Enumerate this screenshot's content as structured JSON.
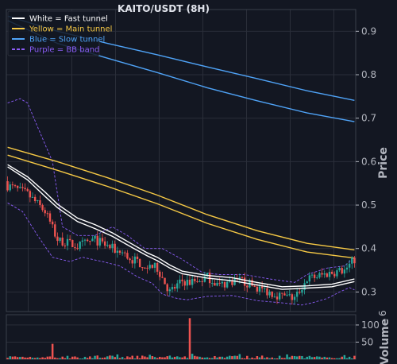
{
  "chart_data": {
    "type": "candlestick",
    "title": "KAITO/USDT (8H)",
    "ylabel": "Price",
    "volume_label": "Volume",
    "volume_exponent": "6",
    "ylim": [
      0.255,
      0.95
    ],
    "vol_ylim": [
      0,
      130
    ],
    "y_ticks": [
      "0.3",
      "0.4",
      "0.5",
      "0.6",
      "0.7",
      "0.8",
      "0.9"
    ],
    "vol_ticks": [
      "50",
      "100"
    ],
    "grid": true,
    "legend_position": "top-left",
    "legend": [
      {
        "label": "White = Fast tunnel",
        "color": "#ffffff",
        "dash": false
      },
      {
        "label": "Yellow = Main tunnel",
        "color": "#f6c945",
        "dash": false
      },
      {
        "label": "Blue = Slow tunnel",
        "color": "#4fa3f7",
        "dash": false
      },
      {
        "label": "Purple = BB band",
        "color": "#8b5cf6",
        "dash": true
      }
    ],
    "colors": {
      "up": "#26a69a",
      "down": "#ef5350",
      "background": "#131722",
      "grid": "#2a2e39"
    },
    "n_candles": 140,
    "close_path": [
      [
        0,
        0.545
      ],
      [
        8,
        0.525
      ],
      [
        15,
        0.485
      ],
      [
        20,
        0.42
      ],
      [
        28,
        0.405
      ],
      [
        35,
        0.42
      ],
      [
        42,
        0.4
      ],
      [
        50,
        0.375
      ],
      [
        56,
        0.36
      ],
      [
        60,
        0.355
      ],
      [
        65,
        0.3
      ],
      [
        70,
        0.325
      ],
      [
        75,
        0.32
      ],
      [
        80,
        0.335
      ],
      [
        85,
        0.315
      ],
      [
        92,
        0.33
      ],
      [
        100,
        0.31
      ],
      [
        105,
        0.3
      ],
      [
        110,
        0.29
      ],
      [
        115,
        0.285
      ],
      [
        120,
        0.33
      ],
      [
        130,
        0.345
      ],
      [
        135,
        0.35
      ],
      [
        139,
        0.375
      ]
    ],
    "fast_tunnel": [
      {
        "name": "fast-upper",
        "points": [
          [
            0,
            0.593
          ],
          [
            8,
            0.565
          ],
          [
            15,
            0.53
          ],
          [
            20,
            0.502
          ],
          [
            28,
            0.47
          ],
          [
            35,
            0.455
          ],
          [
            42,
            0.436
          ],
          [
            50,
            0.41
          ],
          [
            56,
            0.39
          ],
          [
            60,
            0.38
          ],
          [
            65,
            0.362
          ],
          [
            70,
            0.348
          ],
          [
            80,
            0.338
          ],
          [
            90,
            0.333
          ],
          [
            100,
            0.322
          ],
          [
            110,
            0.312
          ],
          [
            120,
            0.314
          ],
          [
            130,
            0.318
          ],
          [
            139,
            0.33
          ]
        ]
      },
      {
        "name": "fast-lower",
        "points": [
          [
            0,
            0.588
          ],
          [
            8,
            0.558
          ],
          [
            15,
            0.52
          ],
          [
            20,
            0.494
          ],
          [
            28,
            0.462
          ],
          [
            35,
            0.446
          ],
          [
            42,
            0.428
          ],
          [
            50,
            0.402
          ],
          [
            56,
            0.383
          ],
          [
            60,
            0.372
          ],
          [
            65,
            0.355
          ],
          [
            70,
            0.342
          ],
          [
            80,
            0.332
          ],
          [
            90,
            0.326
          ],
          [
            100,
            0.316
          ],
          [
            110,
            0.306
          ],
          [
            120,
            0.309
          ],
          [
            130,
            0.312
          ],
          [
            139,
            0.324
          ]
        ]
      }
    ],
    "main_tunnel": [
      {
        "name": "main-upper",
        "points": [
          [
            0,
            0.633
          ],
          [
            20,
            0.6
          ],
          [
            40,
            0.563
          ],
          [
            60,
            0.523
          ],
          [
            80,
            0.478
          ],
          [
            100,
            0.441
          ],
          [
            120,
            0.412
          ],
          [
            139,
            0.397
          ]
        ]
      },
      {
        "name": "main-lower",
        "points": [
          [
            0,
            0.615
          ],
          [
            20,
            0.58
          ],
          [
            40,
            0.543
          ],
          [
            60,
            0.503
          ],
          [
            80,
            0.458
          ],
          [
            100,
            0.421
          ],
          [
            120,
            0.392
          ],
          [
            139,
            0.378
          ]
        ]
      }
    ],
    "slow_tunnel": [
      {
        "name": "slow-upper",
        "points": [
          [
            0,
            0.935
          ],
          [
            20,
            0.9
          ],
          [
            40,
            0.872
          ],
          [
            60,
            0.846
          ],
          [
            80,
            0.818
          ],
          [
            100,
            0.791
          ],
          [
            120,
            0.763
          ],
          [
            139,
            0.741
          ]
        ]
      },
      {
        "name": "slow-lower",
        "points": [
          [
            0,
            0.925
          ],
          [
            20,
            0.872
          ],
          [
            40,
            0.838
          ],
          [
            60,
            0.805
          ],
          [
            80,
            0.77
          ],
          [
            100,
            0.74
          ],
          [
            120,
            0.712
          ],
          [
            139,
            0.692
          ]
        ]
      }
    ],
    "bb_band": [
      {
        "name": "bb-upper",
        "points": [
          [
            0,
            0.735
          ],
          [
            5,
            0.745
          ],
          [
            8,
            0.735
          ],
          [
            12,
            0.68
          ],
          [
            18,
            0.6
          ],
          [
            22,
            0.45
          ],
          [
            28,
            0.43
          ],
          [
            35,
            0.43
          ],
          [
            42,
            0.45
          ],
          [
            48,
            0.43
          ],
          [
            55,
            0.4
          ],
          [
            62,
            0.4
          ],
          [
            70,
            0.375
          ],
          [
            78,
            0.345
          ],
          [
            85,
            0.34
          ],
          [
            95,
            0.34
          ],
          [
            105,
            0.33
          ],
          [
            115,
            0.322
          ],
          [
            120,
            0.34
          ],
          [
            128,
            0.355
          ],
          [
            135,
            0.36
          ],
          [
            139,
            0.38
          ]
        ]
      },
      {
        "name": "bb-lower",
        "points": [
          [
            0,
            0.505
          ],
          [
            6,
            0.485
          ],
          [
            12,
            0.43
          ],
          [
            18,
            0.38
          ],
          [
            25,
            0.37
          ],
          [
            30,
            0.38
          ],
          [
            38,
            0.37
          ],
          [
            45,
            0.36
          ],
          [
            52,
            0.335
          ],
          [
            58,
            0.32
          ],
          [
            62,
            0.295
          ],
          [
            68,
            0.285
          ],
          [
            72,
            0.282
          ],
          [
            80,
            0.29
          ],
          [
            90,
            0.292
          ],
          [
            100,
            0.28
          ],
          [
            110,
            0.275
          ],
          [
            118,
            0.27
          ],
          [
            122,
            0.275
          ],
          [
            128,
            0.285
          ],
          [
            133,
            0.3
          ],
          [
            137,
            0.31
          ],
          [
            139,
            0.305
          ]
        ]
      }
    ],
    "volume_spikes": [
      [
        18,
        45
      ],
      [
        57,
        13
      ],
      [
        73,
        120
      ],
      [
        74,
        16
      ],
      [
        44,
        14
      ],
      [
        93,
        15
      ],
      [
        112,
        14
      ],
      [
        135,
        12
      ]
    ]
  }
}
